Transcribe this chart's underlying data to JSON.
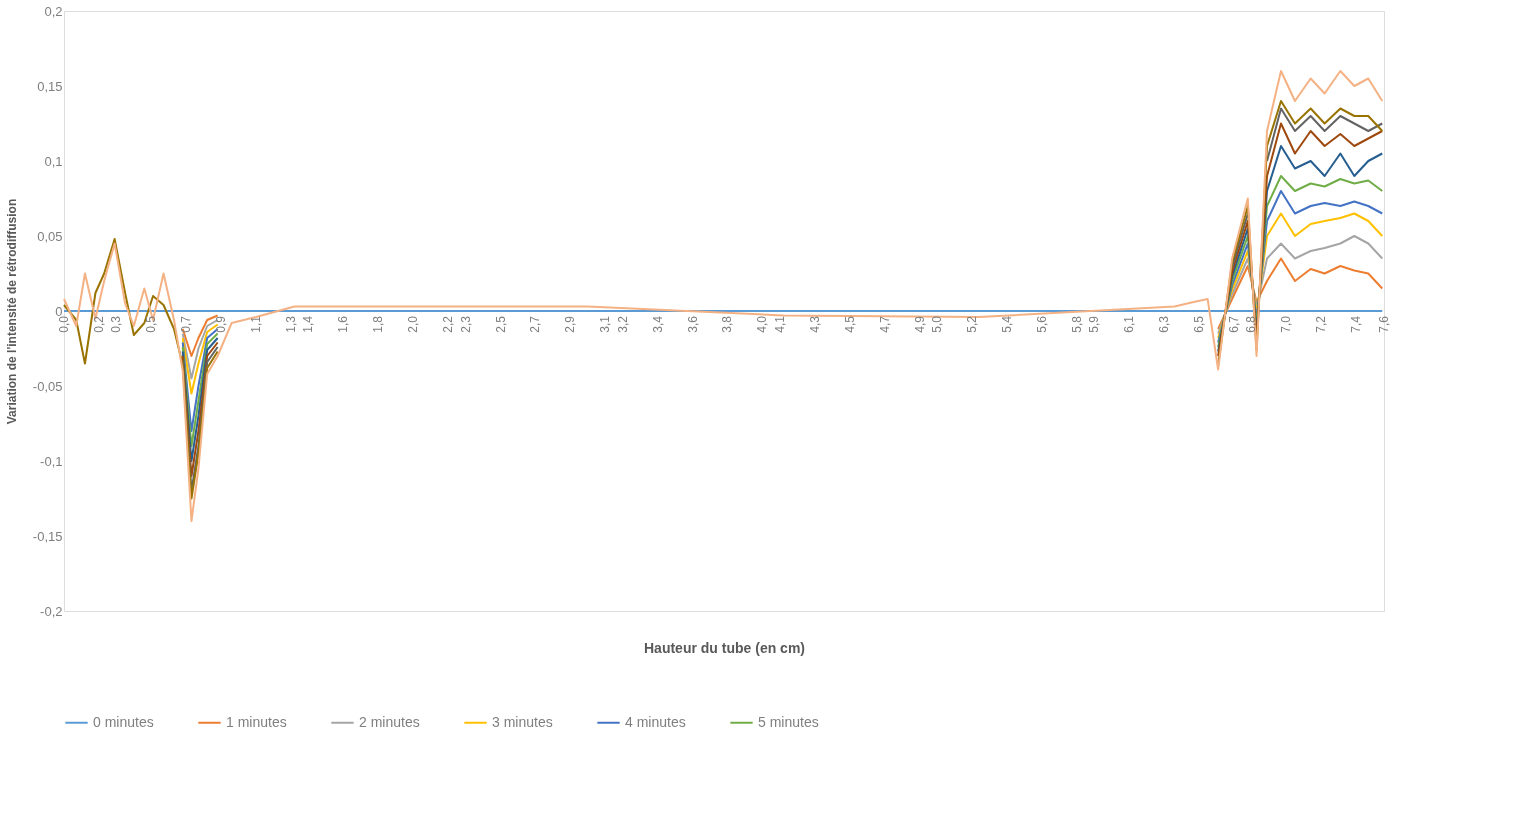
{
  "chart_data": {
    "type": "line",
    "xlabel": "Hauteur du tube (en cm)",
    "ylabel": "Variation de l'intensité de rétrodiffusion",
    "x": [
      0,
      0.07,
      0.12,
      0.18,
      0.23,
      0.29,
      0.35,
      0.4,
      0.46,
      0.51,
      0.57,
      0.63,
      0.68,
      0.73,
      0.77,
      0.82,
      0.88,
      0.96,
      1.1,
      1.32,
      1.88,
      3.0,
      4.12,
      5.24,
      6.36,
      6.47,
      6.55,
      6.61,
      6.69,
      6.78,
      6.83,
      6.89,
      6.97,
      7.05,
      7.14,
      7.22,
      7.31,
      7.39,
      7.47,
      7.55
    ],
    "xlim": [
      0,
      7.56
    ],
    "xticks": [
      {
        "value": 0,
        "label": "0,0"
      },
      {
        "value": 0.2,
        "label": "0,2"
      },
      {
        "value": 0.3,
        "label": "0,3"
      },
      {
        "value": 0.5,
        "label": "0,5"
      },
      {
        "value": 0.7,
        "label": "0,7"
      },
      {
        "value": 0.9,
        "label": "0,9"
      },
      {
        "value": 1.1,
        "label": "1,1"
      },
      {
        "value": 1.3,
        "label": "1,3"
      },
      {
        "value": 1.4,
        "label": "1,4"
      },
      {
        "value": 1.6,
        "label": "1,6"
      },
      {
        "value": 1.8,
        "label": "1,8"
      },
      {
        "value": 2.0,
        "label": "2,0"
      },
      {
        "value": 2.2,
        "label": "2,2"
      },
      {
        "value": 2.3,
        "label": "2,3"
      },
      {
        "value": 2.5,
        "label": "2,5"
      },
      {
        "value": 2.7,
        "label": "2,7"
      },
      {
        "value": 2.9,
        "label": "2,9"
      },
      {
        "value": 3.1,
        "label": "3,1"
      },
      {
        "value": 3.2,
        "label": "3,2"
      },
      {
        "value": 3.4,
        "label": "3,4"
      },
      {
        "value": 3.6,
        "label": "3,6"
      },
      {
        "value": 3.8,
        "label": "3,8"
      },
      {
        "value": 4.0,
        "label": "4,0"
      },
      {
        "value": 4.1,
        "label": "4,1"
      },
      {
        "value": 4.3,
        "label": "4,3"
      },
      {
        "value": 4.5,
        "label": "4,5"
      },
      {
        "value": 4.7,
        "label": "4,7"
      },
      {
        "value": 4.9,
        "label": "4,9"
      },
      {
        "value": 5.0,
        "label": "5,0"
      },
      {
        "value": 5.2,
        "label": "5,2"
      },
      {
        "value": 5.4,
        "label": "5,4"
      },
      {
        "value": 5.6,
        "label": "5,6"
      },
      {
        "value": 5.8,
        "label": "5,8"
      },
      {
        "value": 5.9,
        "label": "5,9"
      },
      {
        "value": 6.1,
        "label": "6,1"
      },
      {
        "value": 6.3,
        "label": "6,3"
      },
      {
        "value": 6.5,
        "label": "6,5"
      },
      {
        "value": 6.7,
        "label": "6,7"
      },
      {
        "value": 6.8,
        "label": "6,8"
      },
      {
        "value": 7.0,
        "label": "7,0"
      },
      {
        "value": 7.2,
        "label": "7,2"
      },
      {
        "value": 7.4,
        "label": "7,4"
      },
      {
        "value": 7.56,
        "label": "7,6"
      }
    ],
    "ylim": [
      -0.2,
      0.2
    ],
    "yticks": [
      {
        "value": -0.2,
        "label": "-0,2"
      },
      {
        "value": -0.15,
        "label": "-0,15"
      },
      {
        "value": -0.1,
        "label": "-0,1"
      },
      {
        "value": -0.05,
        "label": "-0,05"
      },
      0,
      {
        "value": 0.05,
        "label": "0,05"
      },
      {
        "value": 0.1,
        "label": "0,1"
      },
      {
        "value": 0.15,
        "label": "0,15"
      },
      {
        "value": 0.2,
        "label": "0,2"
      }
    ],
    "grid": false,
    "legend": "bottom",
    "marker": "none",
    "line_style": "solid",
    "series": [
      {
        "name": "0 minutes",
        "color": "#5b9bd5",
        "values": [
          0,
          0,
          0,
          0,
          0,
          0,
          0,
          0,
          0,
          0,
          0,
          0,
          0,
          0,
          0,
          0,
          0,
          0,
          0,
          0,
          0,
          0,
          0,
          0,
          0,
          0,
          0,
          0,
          0,
          0,
          0,
          0,
          0,
          0,
          0,
          0,
          0,
          0,
          0,
          0
        ]
      },
      {
        "name": "1 minutes",
        "color": "#ed7d31",
        "values": [
          null,
          null,
          null,
          null,
          null,
          null,
          null,
          null,
          null,
          null,
          null,
          null,
          -0.012,
          -0.03,
          -0.018,
          -0.006,
          -0.003,
          null,
          null,
          null,
          null,
          null,
          null,
          null,
          null,
          null,
          null,
          -0.012,
          0.008,
          0.03,
          0.006,
          0.02,
          0.035,
          0.02,
          0.028,
          0.025,
          0.03,
          0.027,
          0.025,
          0.015
        ]
      },
      {
        "name": "2 minutes",
        "color": "#a5a5a5",
        "values": [
          null,
          null,
          null,
          null,
          null,
          null,
          null,
          null,
          null,
          null,
          null,
          null,
          -0.015,
          -0.045,
          -0.025,
          -0.01,
          -0.006,
          null,
          null,
          null,
          null,
          null,
          null,
          null,
          null,
          null,
          null,
          -0.015,
          0.011,
          0.035,
          0.002,
          0.035,
          0.045,
          0.035,
          0.04,
          0.042,
          0.045,
          0.05,
          0.045,
          0.035
        ]
      },
      {
        "name": "3 minutes",
        "color": "#ffc000",
        "values": [
          null,
          null,
          null,
          null,
          null,
          null,
          null,
          null,
          null,
          null,
          null,
          null,
          -0.018,
          -0.055,
          -0.035,
          -0.014,
          -0.009,
          null,
          null,
          null,
          null,
          null,
          null,
          null,
          null,
          null,
          null,
          -0.018,
          0.014,
          0.04,
          -0.002,
          0.05,
          0.065,
          0.05,
          0.058,
          0.06,
          0.062,
          0.065,
          0.06,
          0.05
        ]
      },
      {
        "name": "4 minutes",
        "color": "#4472c4",
        "values": [
          null,
          null,
          null,
          null,
          null,
          null,
          null,
          null,
          null,
          null,
          null,
          null,
          -0.021,
          -0.08,
          -0.05,
          -0.018,
          -0.012,
          null,
          null,
          null,
          null,
          null,
          null,
          null,
          null,
          null,
          null,
          -0.021,
          0.017,
          0.045,
          -0.006,
          0.06,
          0.08,
          0.065,
          0.07,
          0.072,
          0.07,
          0.073,
          0.07,
          0.065
        ]
      },
      {
        "name": "5 minutes",
        "color": "#70ad47",
        "values": [
          null,
          null,
          null,
          null,
          null,
          null,
          null,
          null,
          null,
          null,
          null,
          null,
          -0.024,
          -0.09,
          -0.06,
          -0.022,
          -0.015,
          null,
          null,
          null,
          null,
          null,
          null,
          null,
          null,
          null,
          null,
          -0.024,
          0.02,
          0.05,
          -0.01,
          0.07,
          0.09,
          0.08,
          0.085,
          0.083,
          0.088,
          0.085,
          0.087,
          0.08
        ]
      },
      {
        "color": "#255e91",
        "values": [
          null,
          null,
          null,
          null,
          null,
          null,
          null,
          null,
          null,
          null,
          null,
          null,
          -0.027,
          -0.1,
          -0.07,
          -0.026,
          -0.018,
          null,
          null,
          null,
          null,
          null,
          null,
          null,
          null,
          null,
          null,
          -0.027,
          0.023,
          0.055,
          -0.014,
          0.08,
          0.11,
          0.095,
          0.1,
          0.09,
          0.105,
          0.09,
          0.1,
          0.105
        ]
      },
      {
        "color": "#9e480e",
        "values": [
          null,
          null,
          null,
          null,
          null,
          null,
          null,
          null,
          null,
          null,
          null,
          null,
          -0.03,
          -0.11,
          -0.08,
          -0.03,
          -0.021,
          null,
          null,
          null,
          null,
          null,
          null,
          null,
          null,
          null,
          null,
          -0.03,
          0.026,
          0.06,
          -0.018,
          0.09,
          0.125,
          0.105,
          0.12,
          0.11,
          0.118,
          0.11,
          0.115,
          0.12
        ]
      },
      {
        "color": "#636363",
        "values": [
          null,
          null,
          null,
          null,
          null,
          null,
          null,
          null,
          null,
          null,
          null,
          null,
          -0.033,
          -0.12,
          -0.09,
          -0.034,
          -0.024,
          null,
          null,
          null,
          null,
          null,
          null,
          null,
          null,
          null,
          null,
          null,
          0.029,
          0.065,
          null,
          0.1,
          0.135,
          0.12,
          0.13,
          0.12,
          0.13,
          0.125,
          0.12,
          0.125
        ]
      },
      {
        "color": "#997300",
        "values": [
          0.004,
          -0.006,
          -0.035,
          0.012,
          0.025,
          0.048,
          0.012,
          -0.016,
          -0.008,
          0.01,
          0.004,
          -0.012,
          -0.036,
          -0.125,
          -0.095,
          -0.038,
          -0.027,
          null,
          null,
          null,
          null,
          null,
          null,
          null,
          null,
          null,
          null,
          -0.036,
          0.032,
          0.07,
          -0.026,
          0.11,
          0.14,
          0.125,
          0.135,
          0.125,
          0.135,
          0.13,
          0.13,
          0.12
        ]
      },
      {
        "color": "#f4b183",
        "values": [
          0.008,
          -0.01,
          0.025,
          -0.005,
          0.02,
          0.045,
          0.005,
          -0.01,
          0.015,
          -0.006,
          0.025,
          -0.006,
          -0.04,
          -0.14,
          -0.105,
          -0.042,
          -0.03,
          -0.008,
          -0.004,
          0.003,
          0.003,
          0.003,
          -0.003,
          -0.004,
          0.003,
          0.006,
          0.008,
          -0.039,
          0.035,
          0.075,
          -0.03,
          0.12,
          0.16,
          0.14,
          0.155,
          0.145,
          0.16,
          0.15,
          0.155,
          0.14
        ]
      }
    ]
  }
}
